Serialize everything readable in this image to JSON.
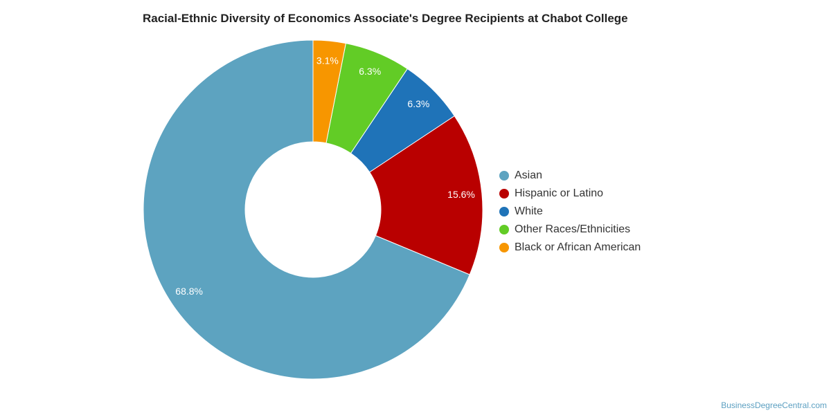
{
  "chart_data": {
    "type": "pie",
    "title": "Racial-Ethnic Diversity of Economics Associate's Degree Recipients at Chabot College",
    "legend_position": "right",
    "inner_radius_ratio": 0.4,
    "slices": [
      {
        "label": "Asian",
        "value": 68.8,
        "display": "68.8%",
        "color": "#5da3c0"
      },
      {
        "label": "Hispanic or Latino",
        "value": 15.6,
        "display": "15.6%",
        "color": "#b90000"
      },
      {
        "label": "White",
        "value": 6.3,
        "display": "6.3%",
        "color": "#1f73b8"
      },
      {
        "label": "Other Races/Ethnicities",
        "value": 6.3,
        "display": "6.3%",
        "color": "#62cc26"
      },
      {
        "label": "Black or African American",
        "value": 3.1,
        "display": "3.1%",
        "color": "#f79600"
      }
    ]
  },
  "credit": "BusinessDegreeCentral.com"
}
